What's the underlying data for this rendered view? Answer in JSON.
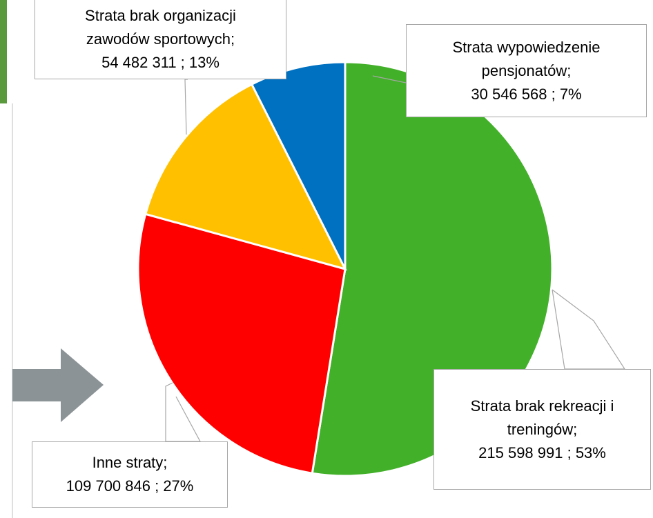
{
  "chart_data": {
    "type": "pie",
    "categories": [
      "Strata brak rekreacji i treningów;",
      "Inne straty;",
      "Strata brak organizacji zawodów sportowych;",
      "Strata wypowiedzenie pensjonatów;"
    ],
    "values": [
      215598991,
      109700846,
      54482311,
      30546568
    ],
    "value_labels": [
      "215 598 991 ; 53%",
      "109 700 846 ; 27%",
      "54 482 311 ; 13%",
      "30 546 568 ; 7%"
    ],
    "colors": [
      "#43b02a",
      "#ff0000",
      "#ffc000",
      "#0070c0"
    ]
  }
}
